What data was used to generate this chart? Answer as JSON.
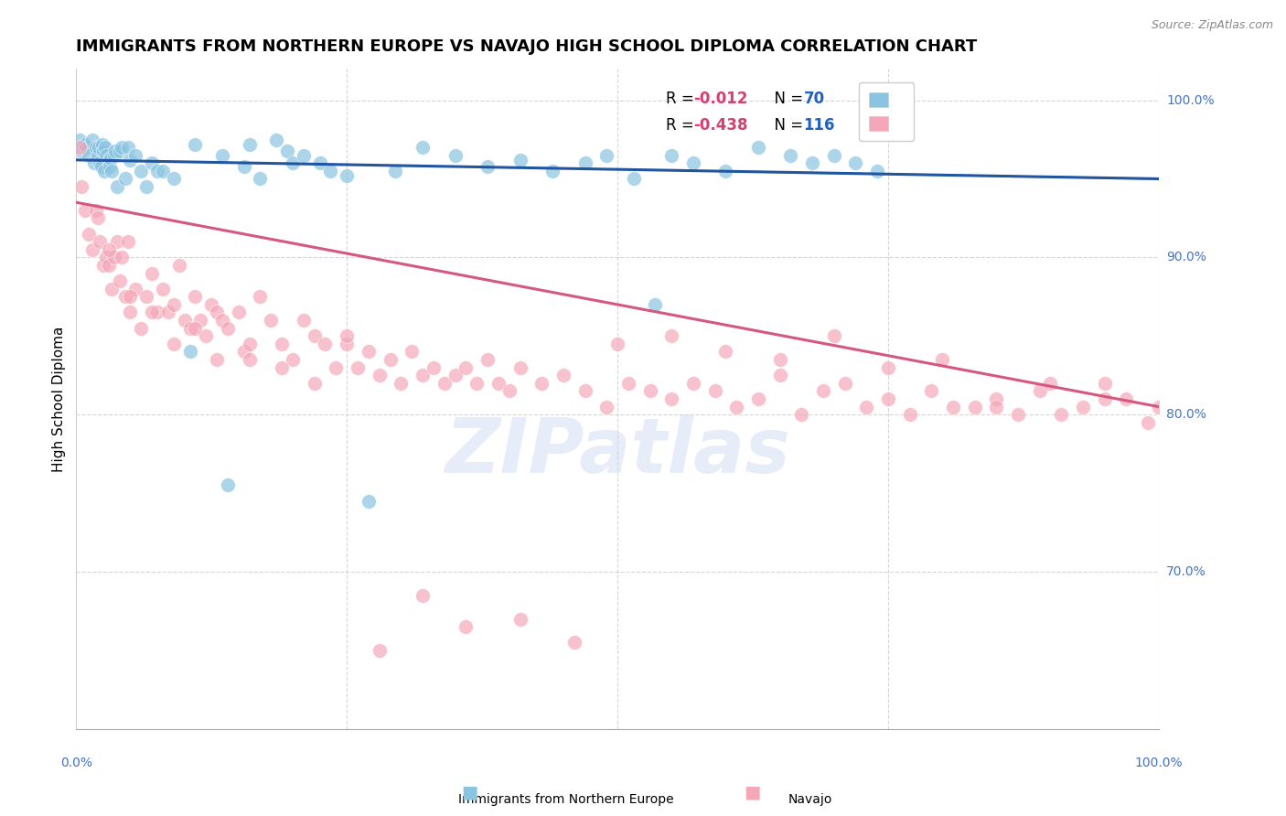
{
  "title": "IMMIGRANTS FROM NORTHERN EUROPE VS NAVAJO HIGH SCHOOL DIPLOMA CORRELATION CHART",
  "source": "Source: ZipAtlas.com",
  "ylabel": "High School Diploma",
  "legend_label1": "Immigrants from Northern Europe",
  "legend_label2": "Navajo",
  "R1": "-0.012",
  "N1": "70",
  "R2": "-0.438",
  "N2": "116",
  "watermark": "ZIPatlas",
  "blue_color": "#89c4e1",
  "pink_color": "#f4a7b9",
  "blue_line_color": "#2155a0",
  "pink_line_color": "#d45880",
  "grid_color": "#cccccc",
  "axis_label_color": "#4472c4",
  "blue_scatter_x": [
    0.3,
    0.5,
    0.8,
    1.0,
    1.2,
    1.5,
    1.7,
    1.8,
    2.0,
    2.1,
    2.2,
    2.3,
    2.4,
    2.5,
    2.6,
    2.7,
    2.8,
    3.0,
    3.1,
    3.2,
    3.3,
    3.5,
    3.6,
    3.8,
    4.0,
    4.2,
    4.5,
    4.8,
    5.0,
    5.5,
    6.0,
    6.5,
    7.0,
    7.5,
    8.0,
    9.0,
    10.5,
    11.0,
    13.5,
    14.0,
    15.5,
    16.0,
    17.0,
    18.5,
    19.5,
    20.0,
    21.0,
    22.5,
    23.5,
    25.0,
    27.0,
    29.5,
    32.0,
    35.0,
    38.0,
    41.0,
    44.0,
    47.0,
    49.0,
    51.5,
    53.5,
    55.0,
    57.0,
    60.0,
    63.0,
    66.0,
    68.0,
    70.0,
    72.0,
    74.0
  ],
  "blue_scatter_y": [
    97.5,
    96.8,
    97.2,
    97.0,
    96.5,
    97.5,
    96.0,
    97.0,
    96.5,
    97.0,
    96.0,
    95.8,
    97.2,
    96.8,
    95.5,
    97.0,
    96.5,
    96.2,
    95.8,
    96.3,
    95.5,
    96.5,
    96.8,
    94.5,
    96.8,
    97.0,
    95.0,
    97.0,
    96.2,
    96.5,
    95.5,
    94.5,
    96.0,
    95.5,
    95.5,
    95.0,
    84.0,
    97.2,
    96.5,
    75.5,
    95.8,
    97.2,
    95.0,
    97.5,
    96.8,
    96.0,
    96.5,
    96.0,
    95.5,
    95.2,
    74.5,
    95.5,
    97.0,
    96.5,
    95.8,
    96.2,
    95.5,
    96.0,
    96.5,
    95.0,
    87.0,
    96.5,
    96.0,
    95.5,
    97.0,
    96.5,
    96.0,
    96.5,
    96.0,
    95.5
  ],
  "pink_scatter_x": [
    0.3,
    0.5,
    0.8,
    1.2,
    1.5,
    1.8,
    2.0,
    2.2,
    2.5,
    2.8,
    3.0,
    3.3,
    3.5,
    3.8,
    4.0,
    4.2,
    4.5,
    4.8,
    5.0,
    5.5,
    6.0,
    6.5,
    7.0,
    7.5,
    8.0,
    8.5,
    9.0,
    9.5,
    10.0,
    10.5,
    11.0,
    11.5,
    12.0,
    12.5,
    13.0,
    13.5,
    14.0,
    15.0,
    15.5,
    16.0,
    17.0,
    18.0,
    19.0,
    20.0,
    21.0,
    22.0,
    23.0,
    24.0,
    25.0,
    26.0,
    27.0,
    28.0,
    29.0,
    30.0,
    31.0,
    32.0,
    33.0,
    34.0,
    35.0,
    36.0,
    37.0,
    38.0,
    39.0,
    40.0,
    41.0,
    43.0,
    45.0,
    47.0,
    49.0,
    51.0,
    53.0,
    55.0,
    57.0,
    59.0,
    61.0,
    63.0,
    65.0,
    67.0,
    69.0,
    71.0,
    73.0,
    75.0,
    77.0,
    79.0,
    81.0,
    83.0,
    85.0,
    87.0,
    89.0,
    91.0,
    93.0,
    95.0,
    97.0,
    99.0,
    50.0,
    55.0,
    60.0,
    65.0,
    70.0,
    75.0,
    80.0,
    85.0,
    90.0,
    95.0,
    100.0,
    3.0,
    5.0,
    7.0,
    9.0,
    11.0,
    13.0,
    16.0,
    19.0,
    22.0,
    25.0,
    28.0,
    32.0,
    36.0,
    41.0,
    46.0
  ],
  "pink_scatter_y": [
    97.0,
    94.5,
    93.0,
    91.5,
    90.5,
    93.0,
    92.5,
    91.0,
    89.5,
    90.0,
    89.5,
    88.0,
    90.0,
    91.0,
    88.5,
    90.0,
    87.5,
    91.0,
    86.5,
    88.0,
    85.5,
    87.5,
    89.0,
    86.5,
    88.0,
    86.5,
    87.0,
    89.5,
    86.0,
    85.5,
    87.5,
    86.0,
    85.0,
    87.0,
    86.5,
    86.0,
    85.5,
    86.5,
    84.0,
    84.5,
    87.5,
    86.0,
    84.5,
    83.5,
    86.0,
    85.0,
    84.5,
    83.0,
    84.5,
    83.0,
    84.0,
    82.5,
    83.5,
    82.0,
    84.0,
    82.5,
    83.0,
    82.0,
    82.5,
    83.0,
    82.0,
    83.5,
    82.0,
    81.5,
    83.0,
    82.0,
    82.5,
    81.5,
    80.5,
    82.0,
    81.5,
    81.0,
    82.0,
    81.5,
    80.5,
    81.0,
    82.5,
    80.0,
    81.5,
    82.0,
    80.5,
    81.0,
    80.0,
    81.5,
    80.5,
    80.5,
    81.0,
    80.0,
    81.5,
    80.0,
    80.5,
    82.0,
    81.0,
    79.5,
    84.5,
    85.0,
    84.0,
    83.5,
    85.0,
    83.0,
    83.5,
    80.5,
    82.0,
    81.0,
    80.5,
    90.5,
    87.5,
    86.5,
    84.5,
    85.5,
    83.5,
    83.5,
    83.0,
    82.0,
    85.0,
    65.0,
    68.5,
    66.5,
    67.0,
    65.5
  ],
  "xlim": [
    0,
    100
  ],
  "ylim": [
    60,
    102
  ],
  "yticks": [
    70,
    80,
    90,
    100
  ],
  "ytick_labels": [
    "70.0%",
    "80.0%",
    "90.0%",
    "100.0%"
  ],
  "blue_line_x": [
    0,
    100
  ],
  "blue_line_y": [
    96.2,
    95.0
  ],
  "pink_line_x": [
    0,
    100
  ],
  "pink_line_y": [
    93.5,
    80.5
  ],
  "legend_R_color": "#d44070",
  "legend_N_color": "#2060c0"
}
